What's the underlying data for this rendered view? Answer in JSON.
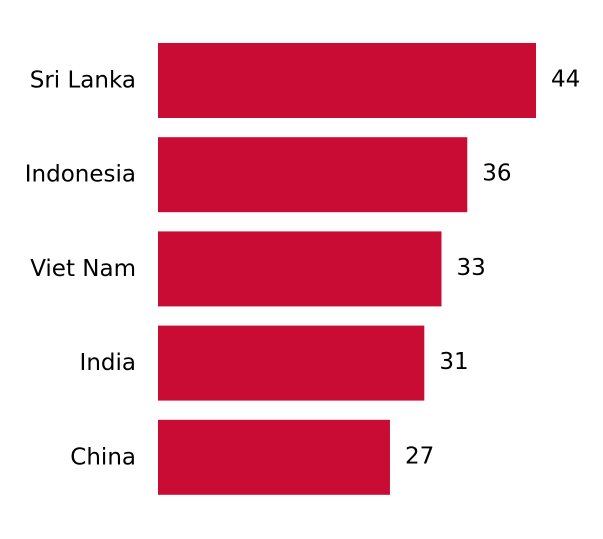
{
  "chart_data": {
    "type": "bar",
    "orientation": "horizontal",
    "categories": [
      "Sri Lanka",
      "Indonesia",
      "Viet Nam",
      "India",
      "China"
    ],
    "values": [
      44,
      36,
      33,
      31,
      27
    ],
    "title": "",
    "xlabel": "",
    "ylabel": "",
    "xlim": [
      0,
      44
    ],
    "grid": false,
    "bar_color": "#c80c33",
    "data_labels": [
      "44",
      "36",
      "33",
      "31",
      "27"
    ]
  }
}
